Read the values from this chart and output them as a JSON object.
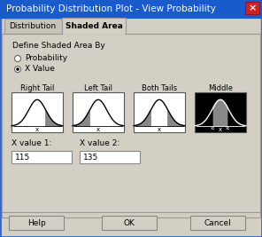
{
  "title": "Probability Distribution Plot - View Probability",
  "title_bg": "#1a5bcc",
  "title_fg": "#ffffff",
  "dialog_bg": "#d4cfc4",
  "outer_border": "#3366cc",
  "tab_inactive": "Distribution",
  "tab_active": "Shaded Area",
  "define_label": "Define Shaded Area By",
  "radio1_label": "Probability",
  "radio2_label": "X Value",
  "curve_labels": [
    "Right Tail",
    "Left Tail",
    "Both Tails",
    "Middle"
  ],
  "curve_bg": [
    "#ffffff",
    "#ffffff",
    "#ffffff",
    "#000000"
  ],
  "curve_fg": [
    "#000000",
    "#000000",
    "#000000",
    "#ffffff"
  ],
  "xval1_label": "X value 1:",
  "xval2_label": "X value 2:",
  "xval1": "115",
  "xval2": "135",
  "btn_help": "Help",
  "btn_ok": "OK",
  "btn_cancel": "Cancel",
  "close_btn_color": "#cc2222",
  "input_bg": "#ffffff",
  "font_size": 6.5,
  "title_font_size": 7.5
}
